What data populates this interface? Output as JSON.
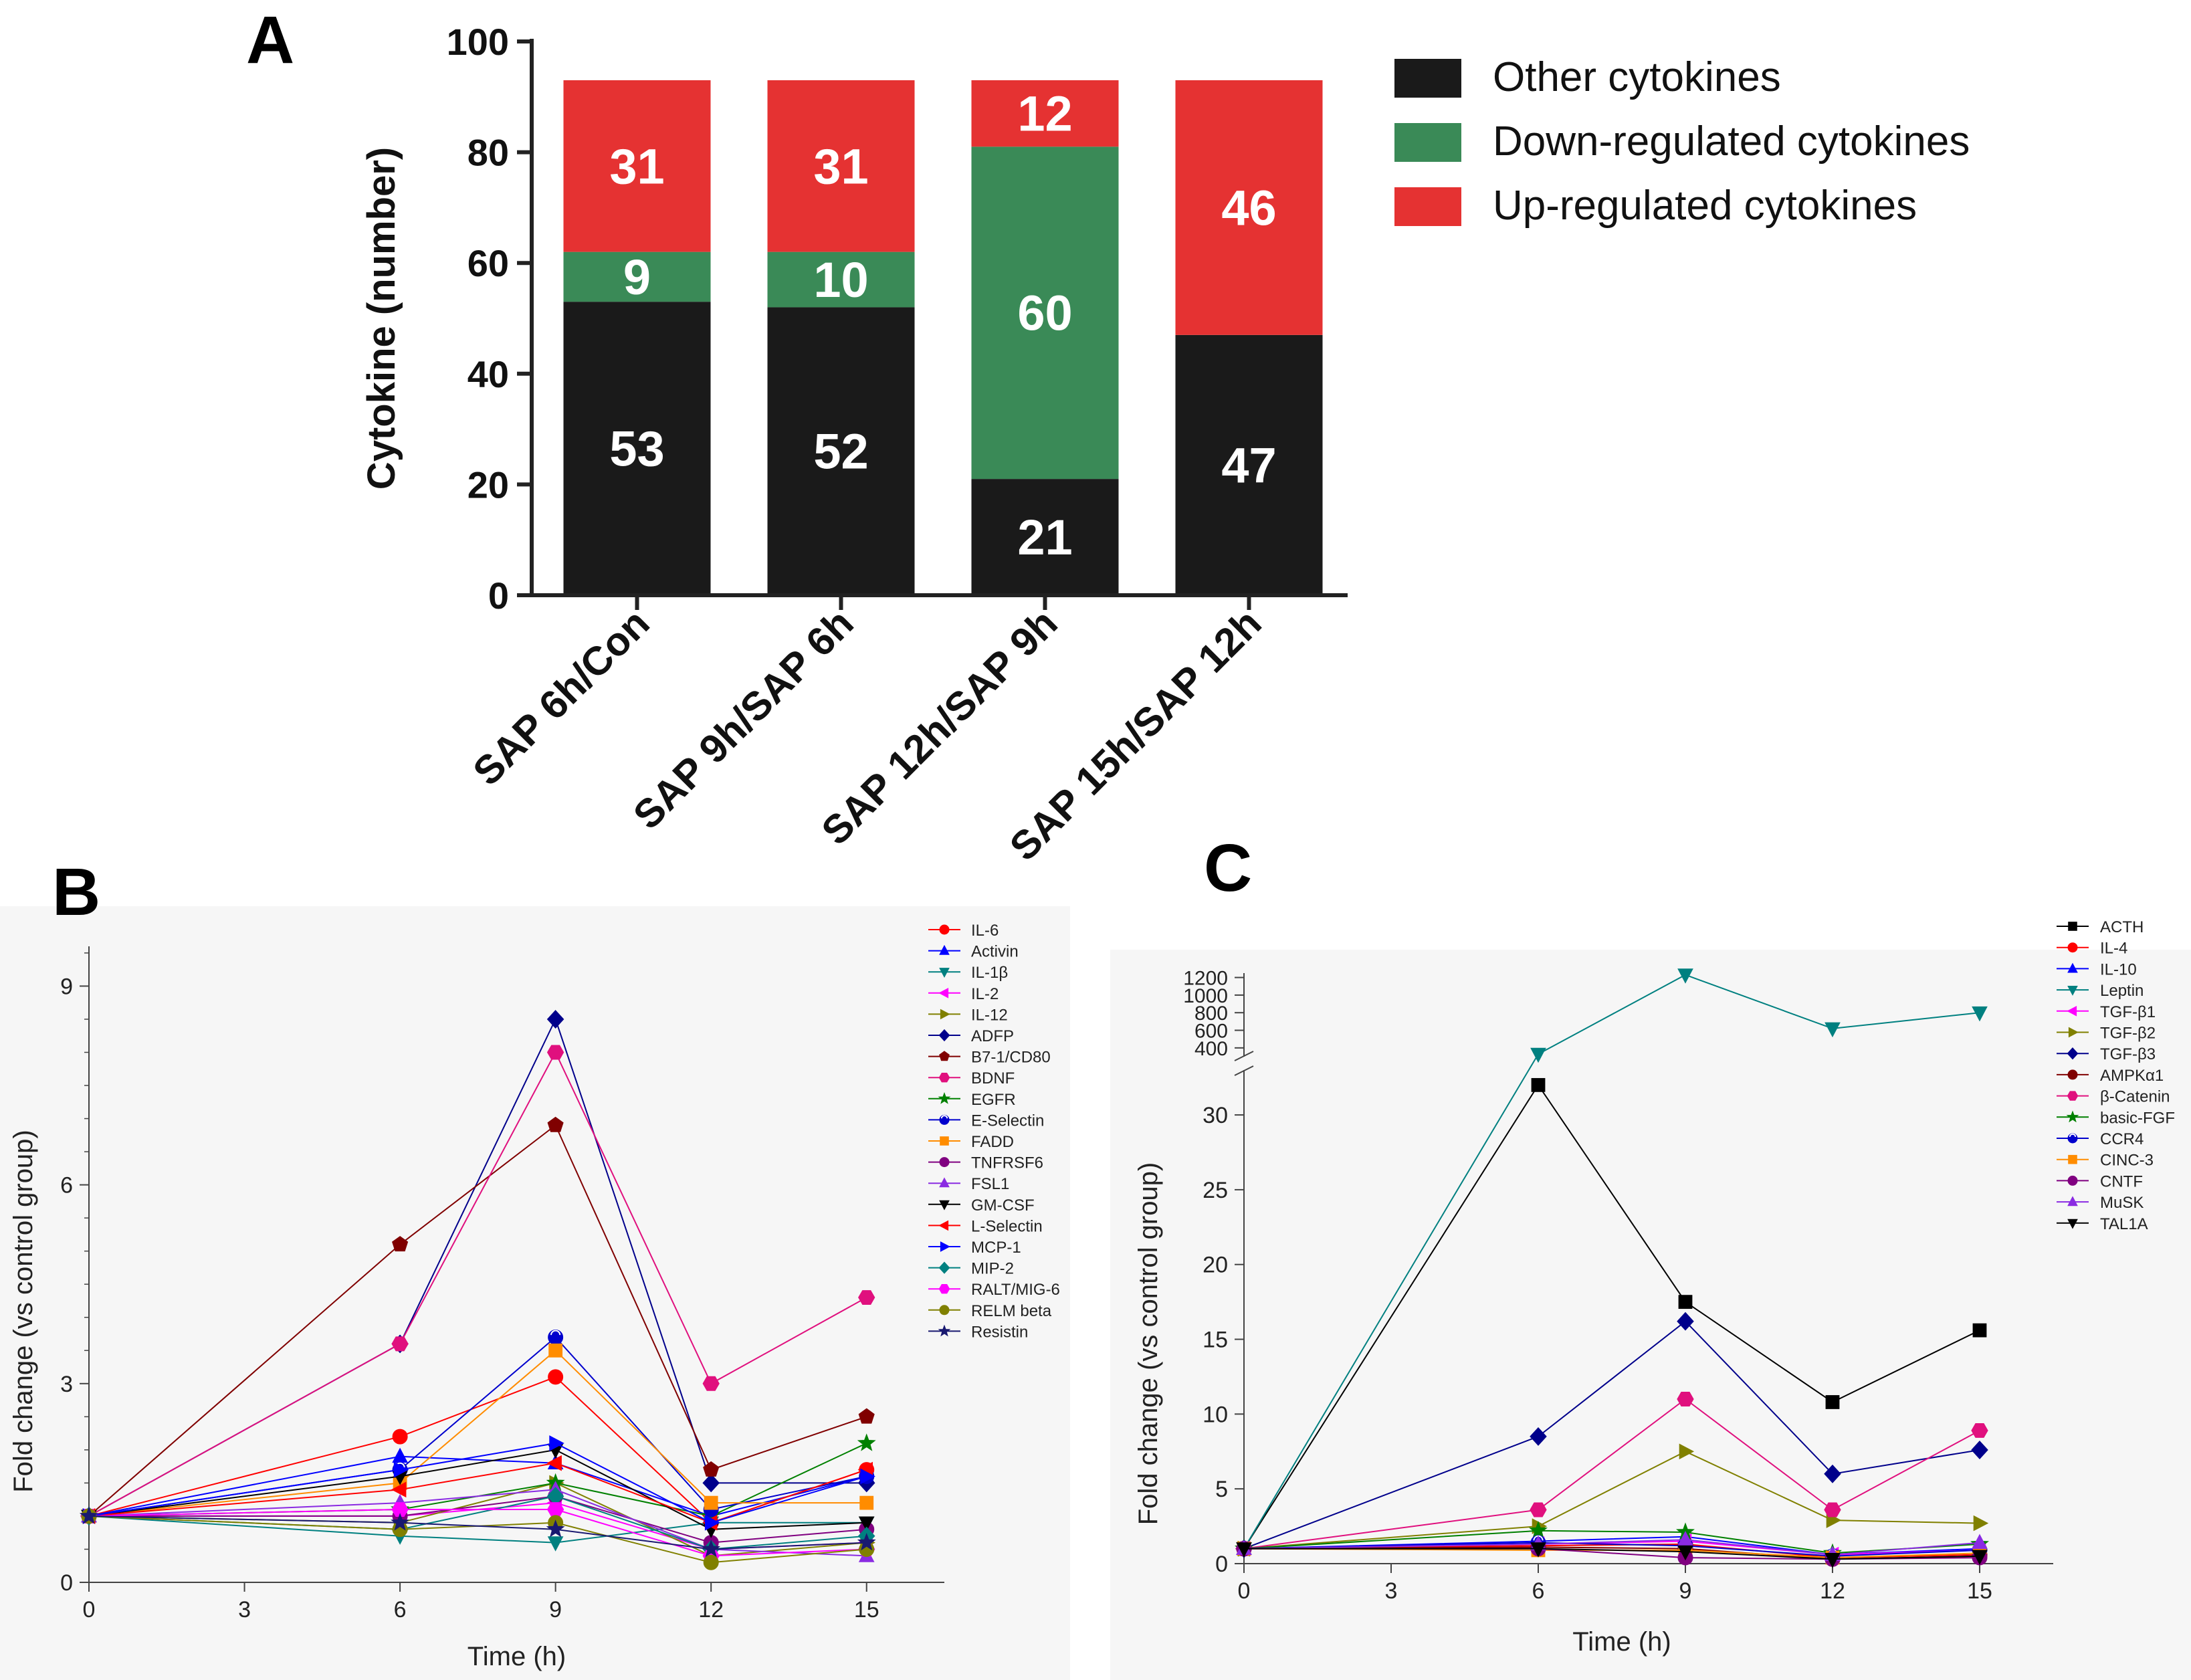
{
  "colors": {
    "other": "#1a1a1a",
    "down": "#3a8a57",
    "up": "#e53232",
    "axis": "#222222",
    "thinAxis": "#444444"
  },
  "panel_labels": {
    "a": "A",
    "b": "B",
    "c": "C"
  },
  "chart_data": [
    {
      "type": "bar",
      "stacked": true,
      "panel": "A",
      "categories": [
        "SAP 6h/Con",
        "SAP 9h/SAP 6h",
        "SAP 12h/SAP 9h",
        "SAP 15h/SAP 12h"
      ],
      "series": [
        {
          "name": "Other cytokines",
          "color": "#1a1a1a",
          "values": [
            53,
            52,
            21,
            47
          ]
        },
        {
          "name": "Down-regulated cytokines",
          "color": "#3a8a57",
          "values": [
            9,
            10,
            60,
            0
          ]
        },
        {
          "name": "Up-regulated cytokines",
          "color": "#e53232",
          "values": [
            31,
            31,
            12,
            46
          ]
        }
      ],
      "legend_order": [
        0,
        1,
        2
      ],
      "ylabel": "Cytokine (number)",
      "xlabel": "",
      "ylim": [
        0,
        100
      ],
      "yticks": [
        0,
        20,
        40,
        60,
        80,
        100
      ],
      "legend": "top-right"
    },
    {
      "type": "line",
      "panel": "B",
      "xlabel": "Time (h)",
      "ylabel": "Fold change (vs control group)",
      "xlim": [
        0,
        16.5
      ],
      "ylim": [
        0,
        9.6
      ],
      "xticks": [
        0,
        3,
        6,
        9,
        12,
        15
      ],
      "yticks": [
        0,
        3,
        6,
        9
      ],
      "x": [
        0,
        6,
        9,
        12,
        15
      ],
      "legend": "top-right",
      "series": [
        {
          "name": "IL-6",
          "color": "#ff0000",
          "marker": "circle",
          "values": [
            1,
            2.2,
            3.1,
            0.9,
            1.7
          ]
        },
        {
          "name": "Activin",
          "color": "#0000ff",
          "marker": "triangle-up",
          "values": [
            1,
            1.9,
            1.8,
            1.0,
            1.6
          ]
        },
        {
          "name": "IL-1β",
          "color": "#008080",
          "marker": "triangle-down",
          "values": [
            1,
            0.7,
            0.6,
            0.9,
            0.9
          ]
        },
        {
          "name": "IL-2",
          "color": "#ff00ff",
          "marker": "triangle-left",
          "values": [
            1,
            1.0,
            1.2,
            0.5,
            0.6
          ]
        },
        {
          "name": "IL-12",
          "color": "#808000",
          "marker": "triangle-right",
          "values": [
            1,
            0.9,
            1.5,
            0.4,
            0.6
          ]
        },
        {
          "name": "ADFP",
          "color": "#00008b",
          "marker": "diamond",
          "values": [
            1,
            3.6,
            8.5,
            1.5,
            1.5
          ]
        },
        {
          "name": "B7-1/CD80",
          "color": "#800000",
          "marker": "pentagon",
          "values": [
            1,
            5.1,
            6.9,
            1.7,
            2.5
          ]
        },
        {
          "name": "BDNF",
          "color": "#e0107e",
          "marker": "hexagon",
          "values": [
            1,
            3.6,
            8.0,
            3.0,
            4.3
          ]
        },
        {
          "name": "EGFR",
          "color": "#008000",
          "marker": "star",
          "values": [
            1,
            1.1,
            1.5,
            1.0,
            2.1
          ]
        },
        {
          "name": "E-Selectin",
          "color": "#0000cd",
          "marker": "circle-half",
          "values": [
            1,
            1.7,
            3.7,
            1.1,
            1.6
          ]
        },
        {
          "name": "FADD",
          "color": "#ff8c00",
          "marker": "square",
          "values": [
            1,
            1.5,
            3.5,
            1.2,
            1.2
          ]
        },
        {
          "name": "TNFRSF6",
          "color": "#800080",
          "marker": "circle",
          "values": [
            1,
            1.0,
            1.3,
            0.6,
            0.8
          ]
        },
        {
          "name": "FSL1",
          "color": "#8a2be2",
          "marker": "triangle-up",
          "values": [
            1,
            1.2,
            1.4,
            0.5,
            0.4
          ]
        },
        {
          "name": "GM-CSF",
          "color": "#000000",
          "marker": "triangle-down",
          "values": [
            1,
            1.6,
            2.0,
            0.8,
            0.9
          ]
        },
        {
          "name": "L-Selectin",
          "color": "#ff0000",
          "marker": "triangle-left",
          "values": [
            1,
            1.4,
            1.8,
            0.9,
            1.7
          ]
        },
        {
          "name": "MCP-1",
          "color": "#0000ff",
          "marker": "triangle-right",
          "values": [
            1,
            1.7,
            2.1,
            0.9,
            1.6
          ]
        },
        {
          "name": "MIP-2",
          "color": "#008080",
          "marker": "diamond",
          "values": [
            1,
            0.8,
            1.3,
            0.5,
            0.7
          ]
        },
        {
          "name": "RALT/MIG-6",
          "color": "#ff00ff",
          "marker": "hexagon",
          "values": [
            1,
            1.1,
            1.1,
            0.4,
            0.5
          ]
        },
        {
          "name": "RELM beta",
          "color": "#808000",
          "marker": "circle",
          "values": [
            1,
            0.8,
            0.9,
            0.3,
            0.5
          ]
        },
        {
          "name": "Resistin",
          "color": "#191970",
          "marker": "star",
          "values": [
            1,
            0.9,
            0.8,
            0.5,
            0.6
          ]
        }
      ]
    },
    {
      "type": "line",
      "panel": "C",
      "xlabel": "Time (h)",
      "ylabel": "Fold change (vs control group)",
      "xlim": [
        0,
        16.5
      ],
      "ylim": [
        0,
        1200
      ],
      "axis_break": {
        "lower": [
          0,
          33
        ],
        "upper": [
          300,
          1250
        ]
      },
      "xticks": [
        0,
        3,
        6,
        9,
        12,
        15
      ],
      "yticks_lower": [
        0,
        5,
        10,
        15,
        20,
        25,
        30
      ],
      "yticks_upper": [
        400,
        600,
        800,
        1000,
        1200
      ],
      "x": [
        0,
        6,
        9,
        12,
        15
      ],
      "legend": "top-right",
      "series": [
        {
          "name": "ACTH",
          "color": "#000000",
          "marker": "square",
          "values": [
            1,
            32,
            17.5,
            10.8,
            15.6
          ]
        },
        {
          "name": "IL-4",
          "color": "#ff0000",
          "marker": "circle",
          "values": [
            1,
            1.2,
            1.3,
            0.4,
            0.6
          ]
        },
        {
          "name": "IL-10",
          "color": "#0000ff",
          "marker": "triangle-up",
          "values": [
            1,
            1.5,
            1.8,
            0.6,
            1.0
          ]
        },
        {
          "name": "Leptin",
          "color": "#008080",
          "marker": "triangle-down",
          "values": [
            1,
            330,
            1230,
            620,
            800
          ]
        },
        {
          "name": "TGF-β1",
          "color": "#ff00ff",
          "marker": "triangle-left",
          "values": [
            1,
            1.3,
            1.5,
            0.6,
            0.9
          ]
        },
        {
          "name": "TGF-β2",
          "color": "#808000",
          "marker": "triangle-right",
          "values": [
            1,
            2.5,
            7.5,
            2.9,
            2.7
          ]
        },
        {
          "name": "TGF-β3",
          "color": "#00008b",
          "marker": "diamond",
          "values": [
            1,
            8.5,
            16.2,
            6.0,
            7.6
          ]
        },
        {
          "name": "AMPKα1",
          "color": "#800000",
          "marker": "circle",
          "values": [
            1,
            1.1,
            1.0,
            0.3,
            0.5
          ]
        },
        {
          "name": "β-Catenin",
          "color": "#e0107e",
          "marker": "hexagon",
          "values": [
            1,
            3.6,
            11.0,
            3.6,
            8.9
          ]
        },
        {
          "name": "basic-FGF",
          "color": "#008000",
          "marker": "star",
          "values": [
            1,
            2.2,
            2.1,
            0.7,
            1.3
          ]
        },
        {
          "name": "CCR4",
          "color": "#0000cd",
          "marker": "circle-half",
          "values": [
            1,
            1.4,
            1.2,
            0.5,
            0.9
          ]
        },
        {
          "name": "CINC-3",
          "color": "#ff8c00",
          "marker": "square",
          "values": [
            1,
            0.9,
            0.9,
            0.4,
            0.7
          ]
        },
        {
          "name": "CNTF",
          "color": "#800080",
          "marker": "circle",
          "values": [
            1,
            1.0,
            0.4,
            0.3,
            0.4
          ]
        },
        {
          "name": "MuSK",
          "color": "#8a2be2",
          "marker": "triangle-up",
          "values": [
            1,
            1.3,
            1.6,
            0.6,
            1.4
          ]
        },
        {
          "name": "TAL1A",
          "color": "#000000",
          "marker": "triangle-down",
          "values": [
            1,
            1.0,
            0.8,
            0.3,
            0.5
          ]
        }
      ]
    }
  ]
}
